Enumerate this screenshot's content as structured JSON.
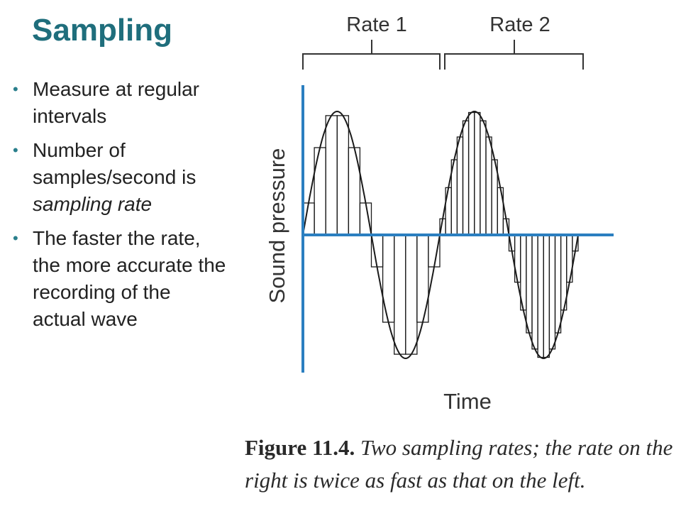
{
  "slide": {
    "title": "Sampling",
    "bullets": [
      {
        "parts": [
          {
            "text": "Measure at regular intervals",
            "italic": false
          }
        ]
      },
      {
        "parts": [
          {
            "text": "Number of samples/second is ",
            "italic": false
          },
          {
            "text": "sampling rate",
            "italic": true
          }
        ]
      },
      {
        "parts": [
          {
            "text": "The faster the rate, the more accurate the recording of the actual wave",
            "italic": false
          }
        ]
      }
    ]
  },
  "figure": {
    "rate_labels": [
      "Rate 1",
      "Rate 2"
    ],
    "y_axis_label": "Sound pressure",
    "x_axis_label": "Time",
    "caption_number": "Figure 11.4.",
    "caption_text": "Two sampling rates; the rate on the right is twice as fast as that on the left.",
    "colors": {
      "axis": "#2b7fc0",
      "wave": "#1a1a1a",
      "text": "#333333"
    },
    "wave": {
      "cycles": 2,
      "cycle1_samples": 12,
      "cycle2_samples": 24
    }
  }
}
